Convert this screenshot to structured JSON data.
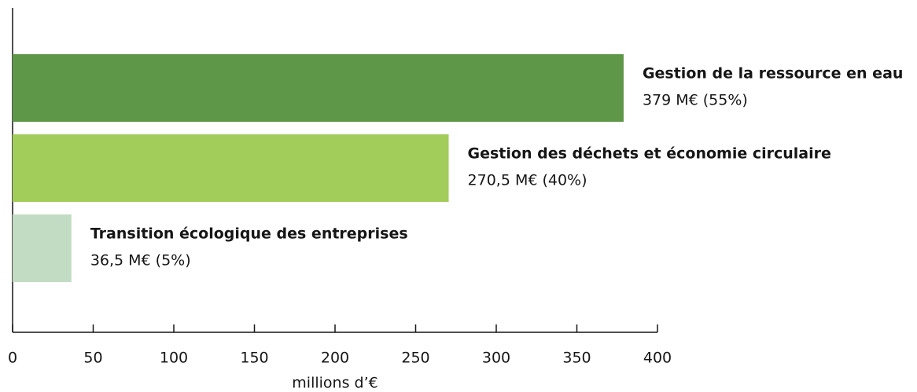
{
  "chart_data": {
    "type": "barh",
    "categories": [
      "Gestion de la ressource en eau",
      "Gestion des déchets et économie circulaire",
      "Transition écologique des entreprises"
    ],
    "values": [
      379,
      270.5,
      36.5
    ],
    "value_labels": [
      "379 M€ (55%)",
      "270,5 M€ (40%)",
      "36,5 M€ (5%)"
    ],
    "colors": [
      "#5e9748",
      "#a2cd5a",
      "#c2dcc4"
    ],
    "xlabel": "millions d’€",
    "xlim": [
      0,
      400
    ],
    "xticks": [
      0,
      50,
      100,
      150,
      200,
      250,
      300,
      350,
      400
    ]
  }
}
